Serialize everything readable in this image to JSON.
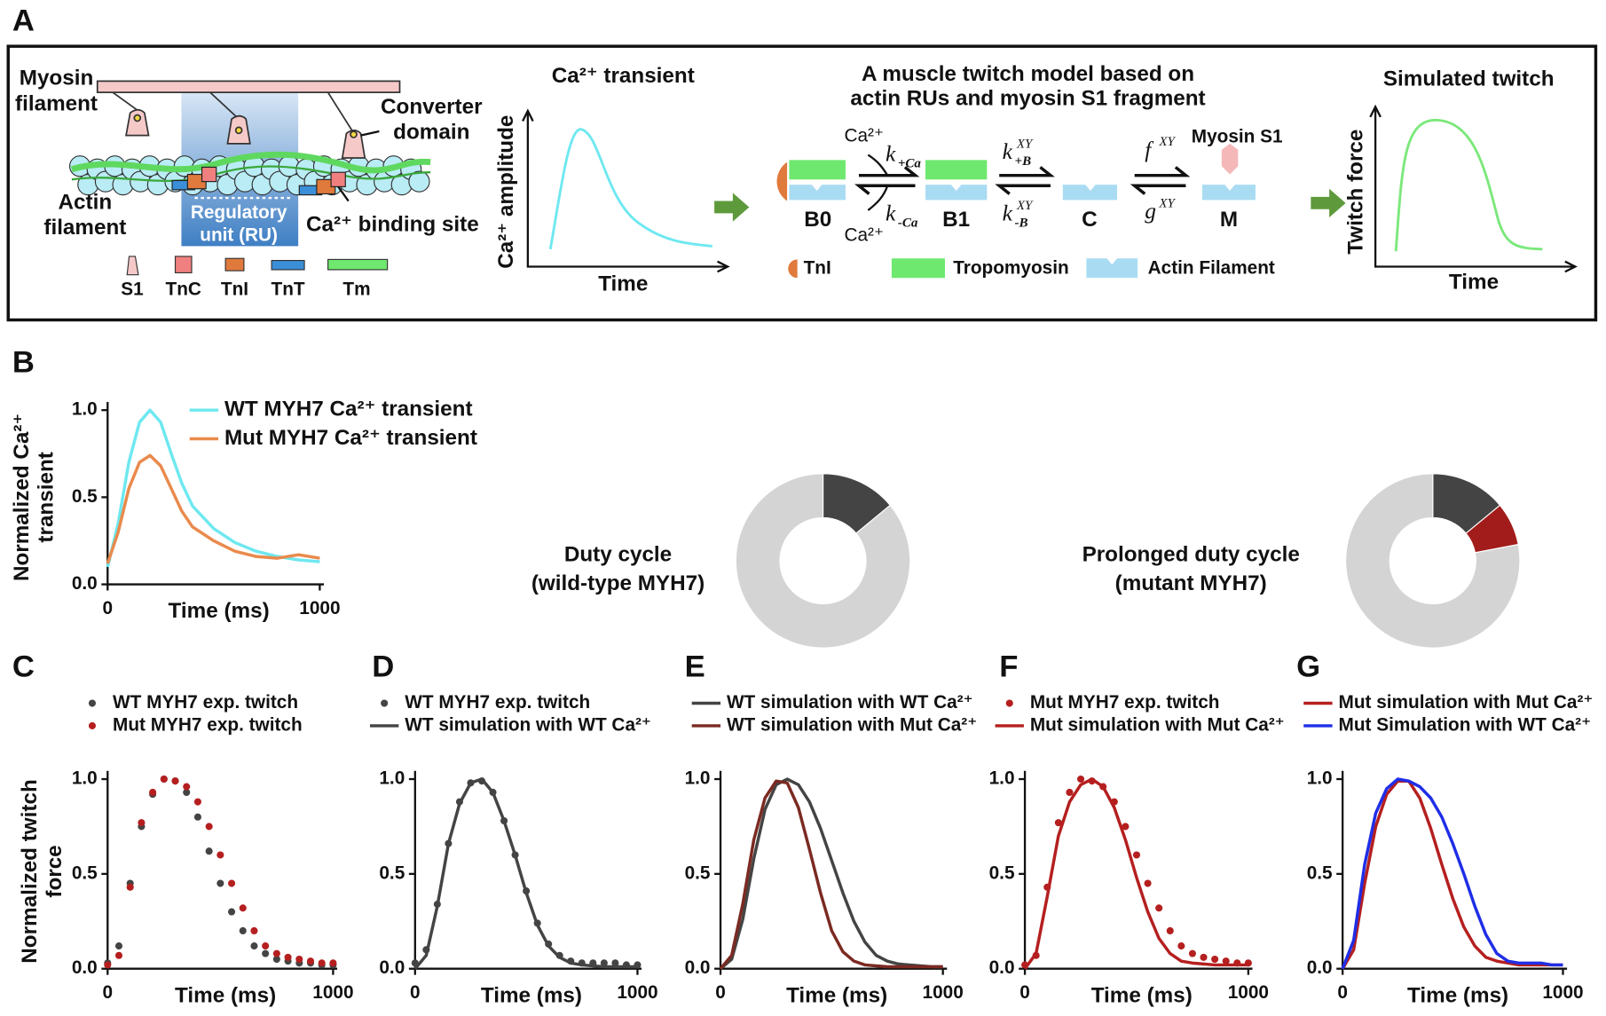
{
  "panel_a": {
    "label": "A",
    "myosin_filament": [
      "Myosin",
      "filament"
    ],
    "converter_domain": [
      "Converter",
      "domain"
    ],
    "actin_filament": [
      "Actin",
      "filament"
    ],
    "regulatory_unit": [
      "Regulatory",
      "unit (RU)"
    ],
    "binding_site": "Ca²⁺ binding site",
    "legend": [
      "S1",
      "TnC",
      "TnI",
      "TnT",
      "Tm"
    ],
    "ca_title": "Ca²⁺ transient",
    "ca_ylabel": "Ca²⁺ amplitude",
    "ca_xlabel": "Time",
    "model_title": [
      "A muscle twitch model based on",
      "actin RUs and myosin S1 fragment"
    ],
    "states": [
      "B0",
      "B1",
      "C",
      "M"
    ],
    "ca_in": "Ca²⁺",
    "ca_out": "Ca²⁺",
    "k_on": {
      "symbol": "k",
      "sub": "+Ca"
    },
    "k_off": {
      "symbol": "k",
      "sub": "-Ca"
    },
    "kb_on": {
      "symbol": "k",
      "sup": "XY",
      "sub": "+B"
    },
    "kb_off": {
      "symbol": "k",
      "sup": "XY",
      "sub": "-B"
    },
    "f": {
      "symbol": "f",
      "sup": "XY"
    },
    "g": {
      "symbol": "g",
      "sup": "XY"
    },
    "myosin_s1": "Myosin S1",
    "model_legend": [
      "TnI",
      "Tropomyosin",
      "Actin Filament"
    ],
    "twitch_title": "Simulated twitch",
    "twitch_ylabel": "Twitch force",
    "twitch_xlabel": "Time"
  },
  "chart_data": [
    {
      "type": "line",
      "panel_label": "B",
      "ylabel": [
        "Normalized Ca²⁺",
        "transient"
      ],
      "xlabel": "Time (ms)",
      "x": [
        0,
        50,
        100,
        150,
        200,
        250,
        300,
        350,
        400,
        500,
        600,
        700,
        800,
        900,
        1000
      ],
      "series": [
        {
          "name": "WT MYH7 Ca²⁺ transient",
          "color": "#6ee8f0",
          "mode": "lines",
          "values": [
            0.1,
            0.35,
            0.7,
            0.93,
            1.0,
            0.93,
            0.75,
            0.58,
            0.45,
            0.32,
            0.24,
            0.19,
            0.16,
            0.14,
            0.13
          ]
        },
        {
          "name": "Mut MYH7 Ca²⁺ transient",
          "color": "#e98a4c",
          "mode": "lines",
          "values": [
            0.12,
            0.3,
            0.55,
            0.7,
            0.74,
            0.68,
            0.55,
            0.42,
            0.33,
            0.25,
            0.19,
            0.16,
            0.15,
            0.17,
            0.15
          ]
        }
      ],
      "xlim": [
        0,
        1000
      ],
      "xticks": [
        0,
        1000
      ],
      "ylim": [
        0,
        1
      ],
      "yticks": [
        {
          "value": 0,
          "label": "0.0"
        },
        0.5,
        {
          "value": 1,
          "label": "1.0"
        }
      ]
    },
    {
      "type": "pie",
      "title": [
        "Duty cycle",
        "(wild-type MYH7)"
      ],
      "values": [
        14,
        86
      ],
      "colors": [
        "#444444",
        "#d4d4d4"
      ]
    },
    {
      "type": "pie",
      "title": [
        "Prolonged duty cycle",
        "(mutant MYH7)"
      ],
      "values": [
        14,
        8,
        78
      ],
      "colors": [
        "#444444",
        "#a21c1c",
        "#d4d4d4"
      ]
    },
    {
      "type": "line",
      "panel_label": "C",
      "ylabel": [
        "Normalized twitch",
        "force"
      ],
      "xlabel": "Time (ms)",
      "x": [
        0,
        50,
        100,
        150,
        200,
        250,
        300,
        350,
        400,
        450,
        500,
        550,
        600,
        650,
        700,
        750,
        800,
        850,
        900,
        950,
        1000
      ],
      "series": [
        {
          "name": "WT MYH7 exp. twitch",
          "color": "#444444",
          "mode": "markers",
          "values": [
            0.03,
            0.12,
            0.45,
            0.75,
            0.92,
            1.0,
            0.99,
            0.93,
            0.8,
            0.62,
            0.45,
            0.3,
            0.2,
            0.12,
            0.08,
            0.05,
            0.04,
            0.03,
            0.03,
            0.02,
            0.02
          ]
        },
        {
          "name": "Mut MYH7 exp. twitch",
          "color": "#b51f1f",
          "mode": "markers",
          "values": [
            0.02,
            0.07,
            0.43,
            0.77,
            0.93,
            1.0,
            0.99,
            0.96,
            0.88,
            0.75,
            0.6,
            0.45,
            0.32,
            0.2,
            0.12,
            0.08,
            0.06,
            0.05,
            0.04,
            0.03,
            0.03
          ]
        }
      ],
      "xlim": [
        0,
        1000
      ],
      "xticks": [
        0,
        1000
      ],
      "ylim": [
        0,
        1
      ],
      "yticks": [
        {
          "value": 0,
          "label": "0.0"
        },
        0.5,
        {
          "value": 1,
          "label": "1.0"
        }
      ]
    },
    {
      "type": "line",
      "panel_label": "D",
      "xlabel": "Time (ms)",
      "x": [
        0,
        50,
        100,
        150,
        200,
        250,
        300,
        350,
        400,
        450,
        500,
        550,
        600,
        650,
        700,
        750,
        800,
        850,
        900,
        950,
        1000
      ],
      "series": [
        {
          "name": "WT MYH7 exp. twitch",
          "color": "#444444",
          "mode": "markers",
          "values": [
            0.03,
            0.1,
            0.34,
            0.66,
            0.88,
            0.98,
            0.99,
            0.93,
            0.78,
            0.6,
            0.41,
            0.24,
            0.13,
            0.07,
            0.04,
            0.03,
            0.03,
            0.03,
            0.03,
            0.02,
            0.02
          ]
        },
        {
          "name": "WT simulation with WT Ca²⁺",
          "color": "#444444",
          "mode": "lines",
          "values": [
            0,
            0.07,
            0.33,
            0.66,
            0.87,
            0.98,
            1.0,
            0.93,
            0.78,
            0.6,
            0.4,
            0.23,
            0.12,
            0.06,
            0.03,
            0.02,
            0.015,
            0.01,
            0.01,
            0.01,
            0.01
          ]
        }
      ],
      "xlim": [
        0,
        1000
      ],
      "xticks": [
        0,
        1000
      ],
      "ylim": [
        0,
        1
      ],
      "yticks": [
        {
          "value": 0,
          "label": "0.0"
        },
        0.5,
        {
          "value": 1,
          "label": "1.0"
        }
      ]
    },
    {
      "type": "line",
      "panel_label": "E",
      "xlabel": "Time (ms)",
      "x": [
        0,
        50,
        100,
        150,
        200,
        250,
        300,
        350,
        400,
        450,
        500,
        550,
        600,
        650,
        700,
        750,
        800,
        850,
        900,
        950,
        1000
      ],
      "series": [
        {
          "name": "WT simulation with WT Ca²⁺",
          "color": "#444444",
          "mode": "lines",
          "values": [
            0,
            0.05,
            0.26,
            0.58,
            0.84,
            0.97,
            1.0,
            0.97,
            0.88,
            0.74,
            0.57,
            0.4,
            0.25,
            0.14,
            0.07,
            0.04,
            0.025,
            0.02,
            0.015,
            0.01,
            0.01
          ]
        },
        {
          "name": "WT simulation with Mut Ca²⁺",
          "color": "#7b2a22",
          "mode": "lines",
          "values": [
            0,
            0.07,
            0.34,
            0.68,
            0.9,
            0.99,
            0.98,
            0.85,
            0.63,
            0.4,
            0.2,
            0.09,
            0.04,
            0.02,
            0.015,
            0.01,
            0.01,
            0.01,
            0.01,
            0.01,
            0.01
          ]
        }
      ],
      "xlim": [
        0,
        1000
      ],
      "xticks": [
        0,
        1000
      ],
      "ylim": [
        0,
        1
      ],
      "yticks": [
        {
          "value": 0,
          "label": "0.0"
        },
        0.5,
        {
          "value": 1,
          "label": "1.0"
        }
      ]
    },
    {
      "type": "line",
      "panel_label": "F",
      "xlabel": "Time (ms)",
      "x": [
        0,
        50,
        100,
        150,
        200,
        250,
        300,
        350,
        400,
        450,
        500,
        550,
        600,
        650,
        700,
        750,
        800,
        850,
        900,
        950,
        1000
      ],
      "series": [
        {
          "name": "Mut MYH7 exp. twitch",
          "color": "#b51f1f",
          "mode": "markers",
          "values": [
            0.02,
            0.07,
            0.43,
            0.77,
            0.93,
            1.0,
            0.99,
            0.96,
            0.88,
            0.75,
            0.6,
            0.45,
            0.32,
            0.2,
            0.12,
            0.08,
            0.06,
            0.05,
            0.04,
            0.03,
            0.03
          ]
        },
        {
          "name": "Mut simulation with Mut Ca²⁺",
          "color": "#b51f1f",
          "mode": "lines",
          "values": [
            0,
            0.08,
            0.38,
            0.7,
            0.88,
            0.97,
            1.0,
            0.96,
            0.85,
            0.68,
            0.48,
            0.3,
            0.16,
            0.08,
            0.04,
            0.03,
            0.025,
            0.02,
            0.02,
            0.02,
            0.02
          ]
        }
      ],
      "xlim": [
        0,
        1000
      ],
      "xticks": [
        0,
        1000
      ],
      "ylim": [
        0,
        1
      ],
      "yticks": [
        {
          "value": 0,
          "label": "0.0"
        },
        0.5,
        {
          "value": 1,
          "label": "1.0"
        }
      ]
    },
    {
      "type": "line",
      "panel_label": "G",
      "xlabel": "Time (ms)",
      "x": [
        0,
        50,
        100,
        150,
        200,
        250,
        300,
        350,
        400,
        450,
        500,
        550,
        600,
        650,
        700,
        750,
        800,
        850,
        900,
        950,
        1000
      ],
      "series": [
        {
          "name": "Mut simulation with Mut Ca²⁺",
          "color": "#b51f1f",
          "mode": "lines",
          "values": [
            0,
            0.1,
            0.45,
            0.75,
            0.92,
            0.99,
            0.99,
            0.9,
            0.74,
            0.55,
            0.37,
            0.22,
            0.12,
            0.06,
            0.04,
            0.03,
            0.02,
            0.02,
            0.02,
            0.02,
            0.02
          ]
        },
        {
          "name": "Mut Simulation with WT Ca²⁺",
          "color": "#1f2ee6",
          "mode": "lines",
          "values": [
            0,
            0.15,
            0.55,
            0.82,
            0.95,
            1.0,
            0.99,
            0.96,
            0.9,
            0.8,
            0.66,
            0.5,
            0.33,
            0.18,
            0.08,
            0.04,
            0.03,
            0.03,
            0.03,
            0.02,
            0.02
          ]
        }
      ],
      "xlim": [
        0,
        1000
      ],
      "xticks": [
        0,
        1000
      ],
      "ylim": [
        0,
        1
      ],
      "yticks": [
        {
          "value": 0,
          "label": "0.0"
        },
        0.5,
        {
          "value": 1,
          "label": "1.0"
        }
      ]
    }
  ]
}
